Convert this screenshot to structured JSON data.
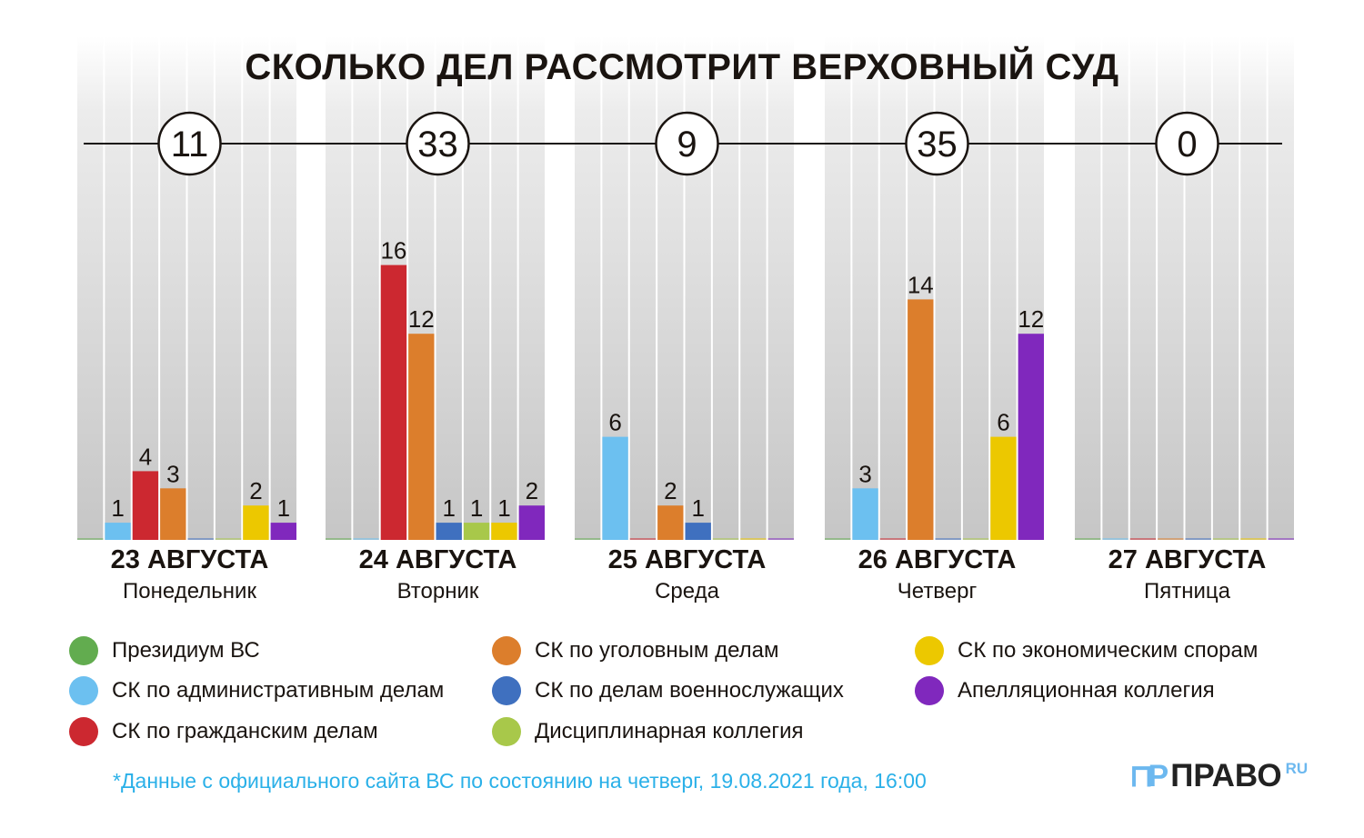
{
  "chart_data": {
    "type": "bar",
    "title": "СКОЛЬКО ДЕЛ РАССМОТРИТ ВЕРХОВНЫЙ СУД",
    "groups": [
      {
        "date": "23 АВГУСТА",
        "weekday": "Понедельник",
        "total": "11"
      },
      {
        "date": "24 АВГУСТА",
        "weekday": "Вторник",
        "total": "33"
      },
      {
        "date": "25 АВГУСТА",
        "weekday": "Среда",
        "total": "9"
      },
      {
        "date": "26 АВГУСТА",
        "weekday": "Четверг",
        "total": "35"
      },
      {
        "date": "27 АВГУСТА",
        "weekday": "Пятница",
        "total": "0"
      }
    ],
    "series": [
      {
        "name": "Президиум ВС",
        "color": "#62ac4f",
        "values": [
          0,
          0,
          0,
          0,
          0
        ]
      },
      {
        "name": "СК по административным делам",
        "color": "#6cc0f0",
        "values": [
          1,
          0,
          6,
          3,
          0
        ]
      },
      {
        "name": "СК по гражданским делам",
        "color": "#cc2830",
        "values": [
          4,
          16,
          0,
          0,
          0
        ]
      },
      {
        "name": "СК по уголовным делам",
        "color": "#dc7e2c",
        "values": [
          3,
          12,
          2,
          14,
          0
        ]
      },
      {
        "name": "СК по делам военнослужащих",
        "color": "#3f70bf",
        "values": [
          0,
          1,
          1,
          0,
          0
        ]
      },
      {
        "name": "Дисциплинарная коллегия",
        "color": "#a8c84a",
        "values": [
          0,
          1,
          0,
          0,
          0
        ]
      },
      {
        "name": "СК по экономическим спорам",
        "color": "#ecc800",
        "values": [
          2,
          1,
          0,
          6,
          0
        ]
      },
      {
        "name": "Апелляционная коллегия",
        "color": "#8028bd",
        "values": [
          1,
          2,
          0,
          12,
          0
        ]
      }
    ],
    "ylim": [
      0,
      28
    ]
  },
  "footnote": "*Данные с официального сайта ВС по состоянию на четверг, 19.08.2021 года, 16:00",
  "logo": {
    "mark": "ℿP",
    "name": "ПРАВО",
    "suffix": "RU"
  }
}
